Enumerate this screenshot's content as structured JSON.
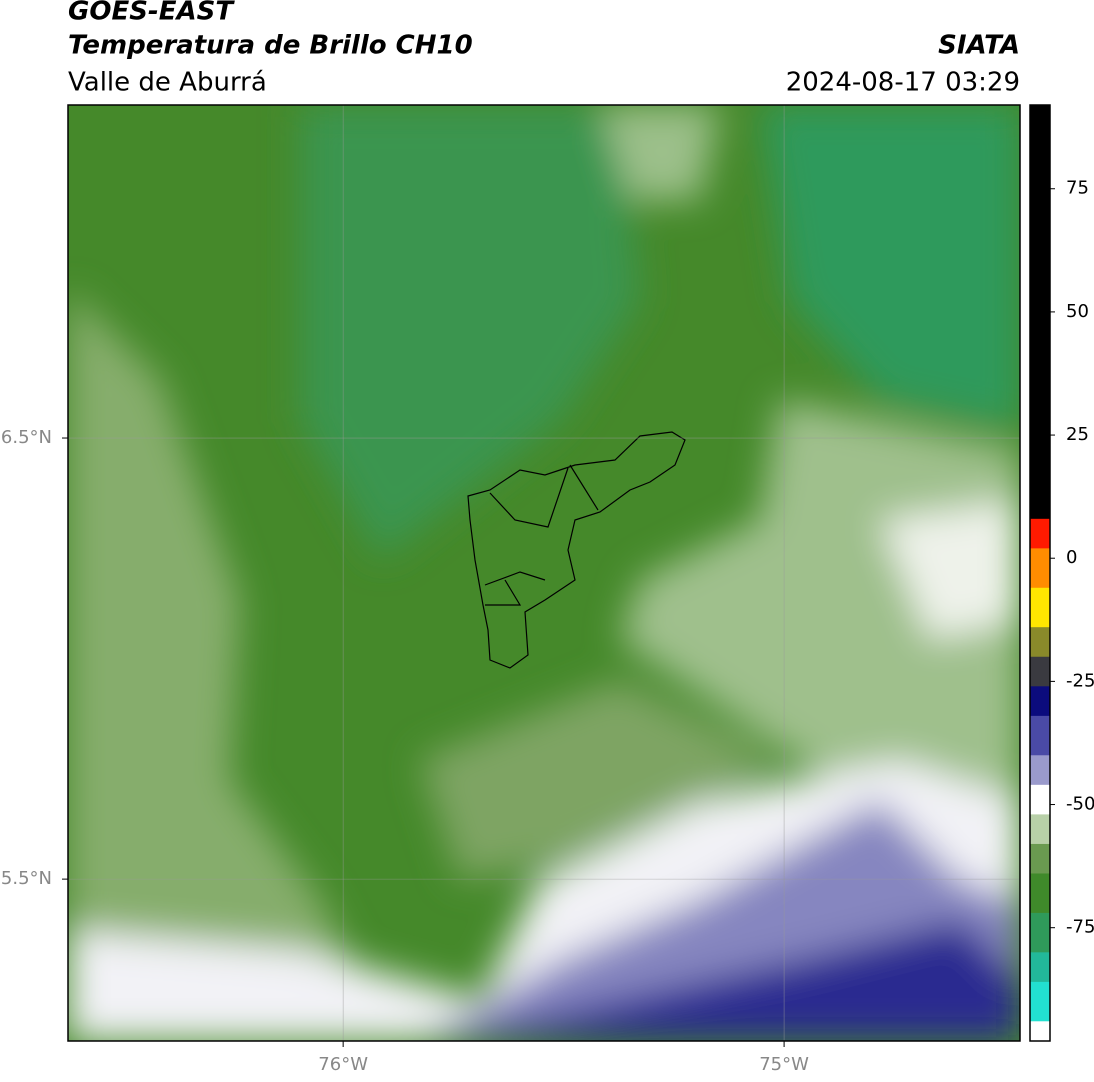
{
  "header": {
    "title": "GOES-EAST",
    "subtitle": "Temperatura de Brillo CH10",
    "region": "Valle de Aburrá",
    "source": "SIATA",
    "datetime": "2024-08-17 03:29"
  },
  "map": {
    "lonlim": [
      -76.624,
      -74.465
    ],
    "latlim": [
      5.133,
      7.255
    ],
    "lonticks": [
      {
        "value": -76,
        "label": "76°W"
      },
      {
        "value": -75,
        "label": "75°W"
      }
    ],
    "latticks": [
      {
        "value": 6.5,
        "label": "6.5°N"
      },
      {
        "value": 5.5,
        "label": "5.5°N"
      }
    ],
    "grid": true
  },
  "colorbar": {
    "lim": [
      -98,
      92
    ],
    "ticks": [
      75,
      50,
      25,
      0,
      -25,
      -50,
      -75
    ],
    "segments": [
      {
        "from": 92,
        "to": 8,
        "color": "#000000"
      },
      {
        "from": 8,
        "to": 2,
        "color": "#ff1a00"
      },
      {
        "from": 2,
        "to": -6,
        "color": "#ff8c00"
      },
      {
        "from": -6,
        "to": -14,
        "color": "#ffe600"
      },
      {
        "from": -14,
        "to": -20,
        "color": "#8a8a2a"
      },
      {
        "from": -20,
        "to": -26,
        "color": "#3a3a40"
      },
      {
        "from": -26,
        "to": -32,
        "color": "#0b0b7d"
      },
      {
        "from": -32,
        "to": -40,
        "color": "#4a4aa6"
      },
      {
        "from": -40,
        "to": -46,
        "color": "#9a9acc"
      },
      {
        "from": -46,
        "to": -52,
        "color": "#ffffff"
      },
      {
        "from": -52,
        "to": -58,
        "color": "#b8d0a8"
      },
      {
        "from": -58,
        "to": -64,
        "color": "#6a9a50"
      },
      {
        "from": -64,
        "to": -72,
        "color": "#3f8a2a"
      },
      {
        "from": -72,
        "to": -80,
        "color": "#2f9a5a"
      },
      {
        "from": -80,
        "to": -86,
        "color": "#22b89a"
      },
      {
        "from": -86,
        "to": -94,
        "color": "#22e0d0"
      },
      {
        "from": -94,
        "to": -98,
        "color": "#ffffff"
      }
    ]
  }
}
